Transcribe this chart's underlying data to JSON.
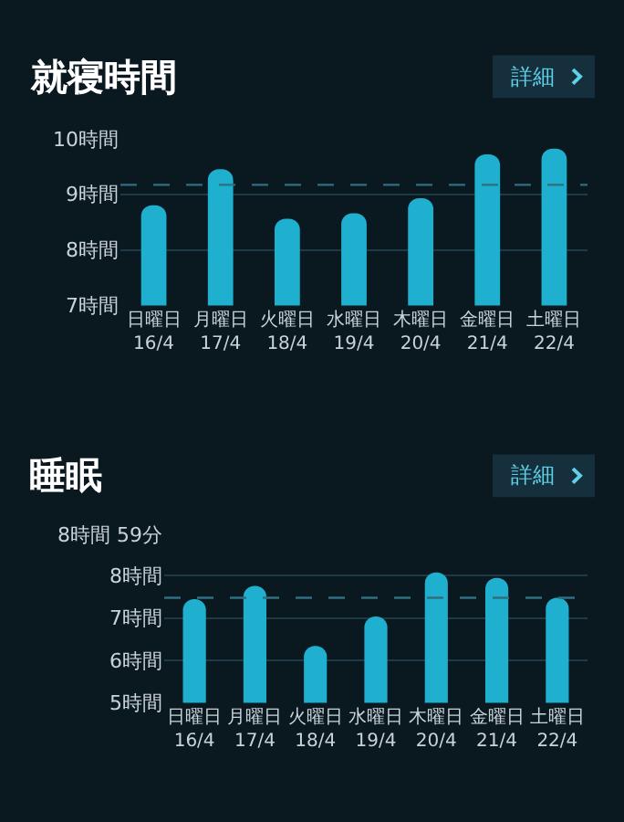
{
  "chart_data": [
    {
      "type": "bar",
      "title": "就寝時間",
      "annotations": [
        "詳細"
      ],
      "categories": [
        "日曜日\n16/4",
        "月曜日\n17/4",
        "火曜日\n18/4",
        "水曜日\n19/4",
        "木曜日\n20/4",
        "金曜日\n21/4",
        "土曜日\n22/4"
      ],
      "values": [
        8.8,
        9.45,
        8.56,
        8.66,
        8.93,
        9.72,
        9.82
      ],
      "color": "#1fb0cf",
      "ylim": [
        7,
        10
      ],
      "yticks": [
        {
          "value": 7,
          "label": "7時間"
        },
        {
          "value": 8,
          "label": "8時間"
        },
        {
          "value": 9,
          "label": "9時間"
        },
        {
          "value": 10,
          "label": "10時間"
        }
      ],
      "grid": "y",
      "ref_lines": [
        {
          "axis": "y",
          "value": 9.17,
          "label": null,
          "color": "#2f6f80",
          "line_style": "dashed"
        }
      ]
    },
    {
      "type": "bar",
      "title": "睡眠",
      "annotations": [
        "詳細"
      ],
      "categories": [
        "日曜日\n16/4",
        "月曜日\n17/4",
        "火曜日\n18/4",
        "水曜日\n19/4",
        "木曜日\n20/4",
        "金曜日\n21/4",
        "土曜日\n22/4"
      ],
      "values": [
        7.45,
        7.76,
        6.34,
        7.04,
        8.08,
        7.95,
        7.48
      ],
      "color": "#1fb0cf",
      "ylim": [
        5,
        8.98
      ],
      "yticks": [
        {
          "value": 5,
          "label": "5時間"
        },
        {
          "value": 6,
          "label": "6時間"
        },
        {
          "value": 7,
          "label": "7時間"
        },
        {
          "value": 8,
          "label": "8時間"
        },
        {
          "value": 8.98,
          "label": "8時間 59分"
        }
      ],
      "grid": "y",
      "ref_lines": [
        {
          "axis": "y",
          "value": 7.48,
          "label": null,
          "color": "#2f6f80",
          "line_style": "dashed"
        }
      ]
    }
  ]
}
